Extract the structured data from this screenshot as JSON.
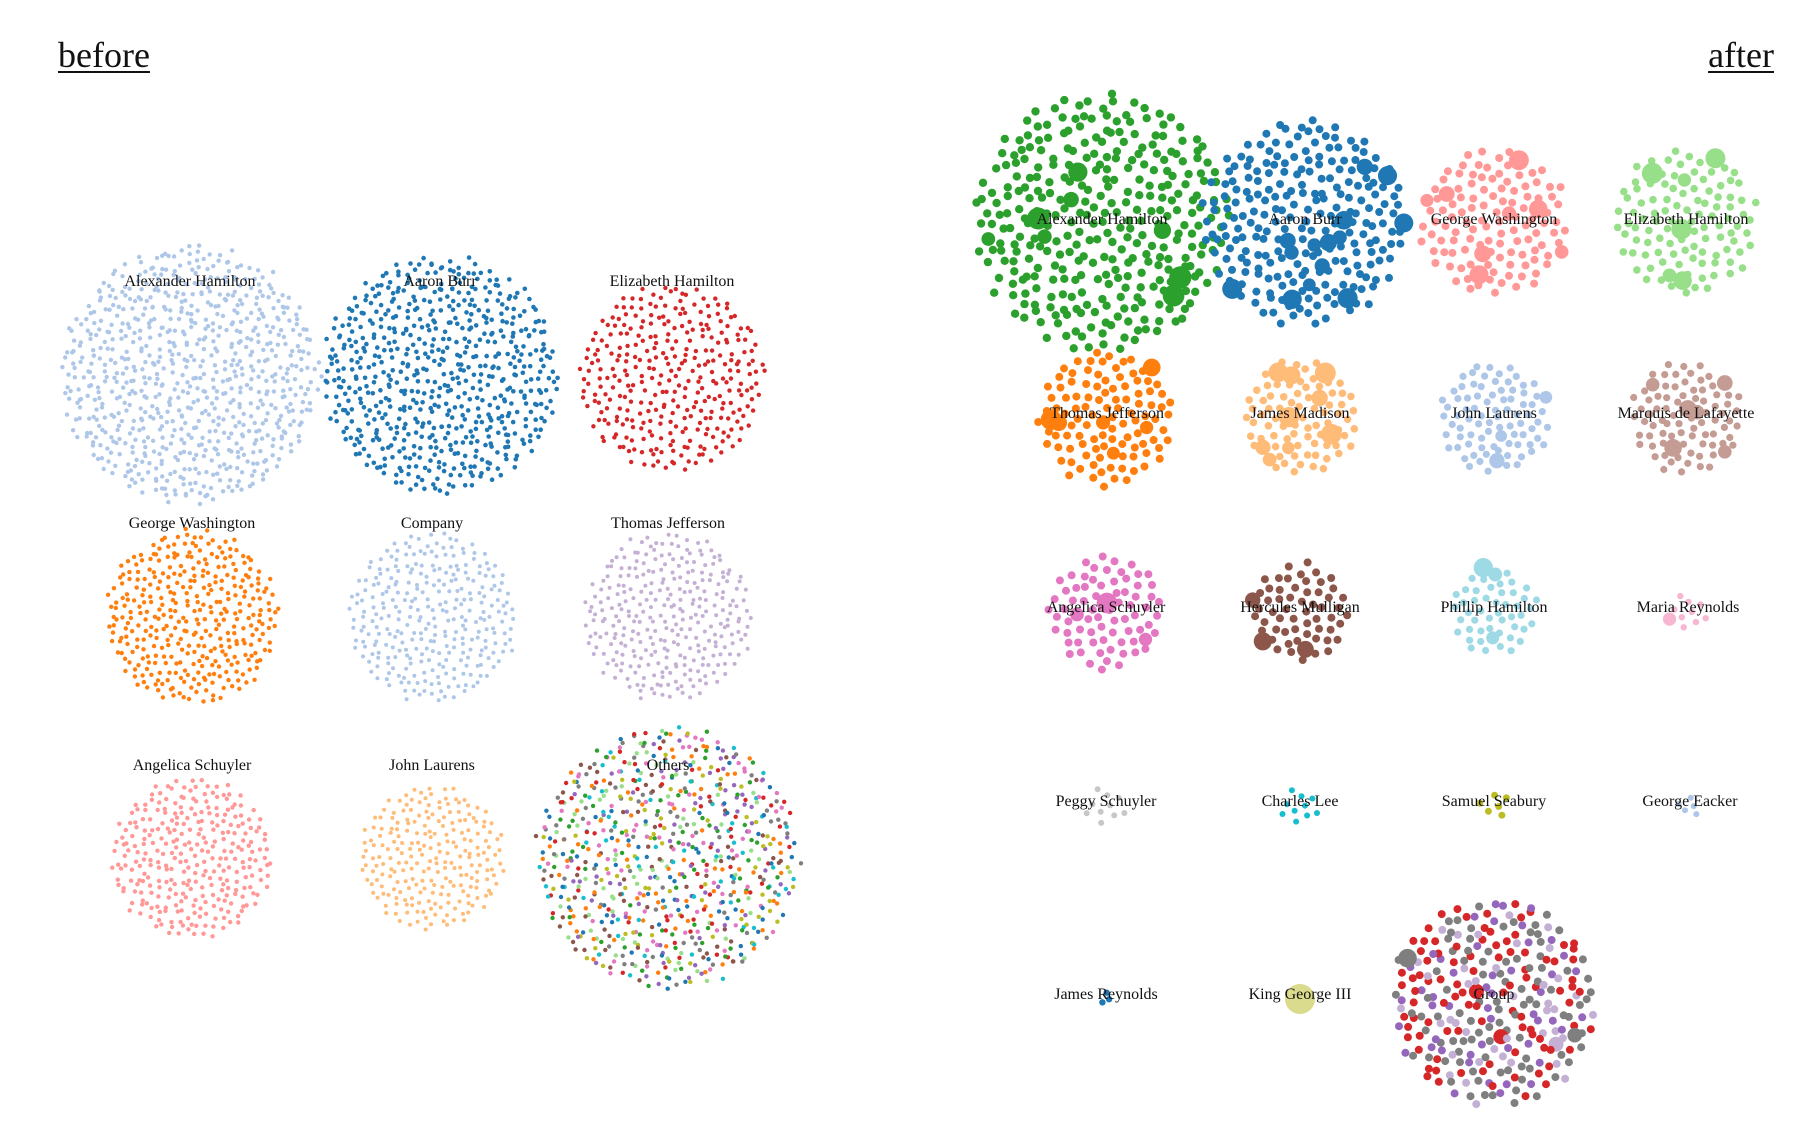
{
  "panels": {
    "before": {
      "title": "before",
      "clusters": [
        {
          "label": "Alexander Hamilton",
          "color": "#aec7e8",
          "count": 760
        },
        {
          "label": "Aaron Burr",
          "color": "#1f77b4",
          "count": 640
        },
        {
          "label": "Elizabeth Hamilton",
          "color": "#d62728",
          "count": 330
        },
        {
          "label": "George Washington",
          "color": "#ff7f0e",
          "count": 360
        },
        {
          "label": "Company",
          "color": "#aec7e8",
          "count": 300
        },
        {
          "label": "Thomas Jefferson",
          "color": "#c5b0d5",
          "count": 300
        },
        {
          "label": "Angelica Schuyler",
          "color": "#ff9896",
          "count": 300
        },
        {
          "label": "John Laurens",
          "color": "#ffbb78",
          "count": 230
        },
        {
          "label": "Others",
          "colors": [
            "#1f77b4",
            "#2ca02c",
            "#8c564b",
            "#98df8a",
            "#e377c2",
            "#9467bd",
            "#17becf",
            "#ff7f0e",
            "#7f7f7f",
            "#bcbd22",
            "#d62728"
          ],
          "count": 760
        }
      ]
    },
    "after": {
      "title": "after",
      "clusters": [
        {
          "label": "Alexander Hamilton",
          "color": "#2ca02c",
          "count": 330
        },
        {
          "label": "Aaron Burr",
          "color": "#1f77b4",
          "count": 240
        },
        {
          "label": "George Washington",
          "color": "#ff9896",
          "count": 120
        },
        {
          "label": "Elizabeth Hamilton",
          "color": "#98df8a",
          "count": 110
        },
        {
          "label": "Thomas Jefferson",
          "color": "#ff7f0e",
          "count": 110
        },
        {
          "label": "James Madison",
          "color": "#ffbb78",
          "count": 85
        },
        {
          "label": "John Laurens",
          "color": "#aec7e8",
          "count": 85
        },
        {
          "label": "Marquis de Lafayette",
          "color": "#c49c94",
          "count": 85
        },
        {
          "label": "Angelica Schuyler",
          "color": "#e377c2",
          "count": 75
        },
        {
          "label": "Hercules Mulligan",
          "color": "#8c564b",
          "count": 60
        },
        {
          "label": "Phillip Hamilton",
          "color": "#9edae5",
          "count": 50
        },
        {
          "label": "Maria Reynolds",
          "color": "#f7b6d2",
          "count": 10
        },
        {
          "label": "Peggy Schuyler",
          "color": "#c7c7c7",
          "count": 10
        },
        {
          "label": "Charles Lee",
          "color": "#17becf",
          "count": 10
        },
        {
          "label": "Samuel Seabury",
          "color": "#bcbd22",
          "count": 6
        },
        {
          "label": "George Eacker",
          "color": "#aec7e8",
          "count": 5
        },
        {
          "label": "James Reynolds",
          "color": "#1f77b4",
          "count": 3
        },
        {
          "label": "King George III",
          "color": "#dbdb8d",
          "count": 1
        },
        {
          "label": "Group",
          "colors": [
            "#d62728",
            "#7f7f7f",
            "#c5b0d5",
            "#9467bd",
            "#d62728",
            "#7f7f7f"
          ],
          "count": 280
        }
      ]
    }
  }
}
